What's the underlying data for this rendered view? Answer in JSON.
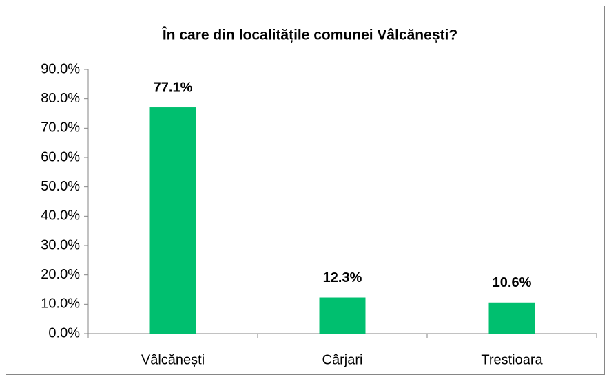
{
  "chart_data": {
    "type": "bar",
    "title": "În care din localitățile comunei Vâlcănești?",
    "categories": [
      "Vâlcănești",
      "Cârjari",
      "Trestioara"
    ],
    "values": [
      77.1,
      12.3,
      10.6
    ],
    "value_labels": [
      "77.1%",
      "12.3%",
      "10.6%"
    ],
    "color": "#00bf6f",
    "ylim": [
      0,
      90
    ],
    "yticks": [
      {
        "value": 0,
        "label": "0.0%"
      },
      {
        "value": 10,
        "label": "10.0%"
      },
      {
        "value": 20,
        "label": "20.0%"
      },
      {
        "value": 30,
        "label": "30.0%"
      },
      {
        "value": 40,
        "label": "40.0%"
      },
      {
        "value": 50,
        "label": "50.0%"
      },
      {
        "value": 60,
        "label": "60.0%"
      },
      {
        "value": 70,
        "label": "70.0%"
      },
      {
        "value": 80,
        "label": "80.0%"
      },
      {
        "value": 90,
        "label": "90.0%"
      }
    ],
    "grid": false
  }
}
